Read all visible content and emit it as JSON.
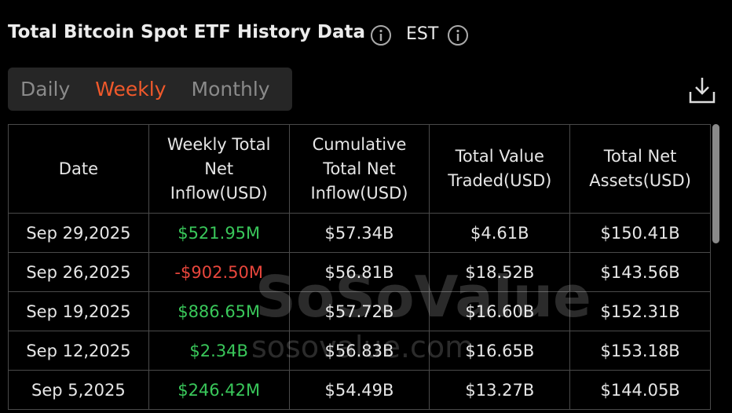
{
  "header": {
    "title": "Total Bitcoin Spot ETF History Data",
    "timezone": "EST"
  },
  "tabs": {
    "items": [
      "Daily",
      "Weekly",
      "Monthly"
    ],
    "active": 1
  },
  "table": {
    "columns": [
      "Date",
      "Weekly Total Net Inflow(USD)",
      "Cumulative Total Net Inflow(USD)",
      "Total Value Traded(USD)",
      "Total Net Assets(USD)"
    ],
    "rows": [
      [
        "Sep 29,2025",
        "$521.95M",
        "$57.34B",
        "$4.61B",
        "$150.41B"
      ],
      [
        "Sep 26,2025",
        "-$902.50M",
        "$56.81B",
        "$18.52B",
        "$143.56B"
      ],
      [
        "Sep 19,2025",
        "$886.65M",
        "$57.72B",
        "$16.60B",
        "$152.31B"
      ],
      [
        "Sep 12,2025",
        "$2.34B",
        "$56.83B",
        "$16.65B",
        "$153.18B"
      ],
      [
        "Sep 5,2025",
        "$246.42M",
        "$54.49B",
        "$13.27B",
        "$144.05B"
      ]
    ]
  },
  "watermark": {
    "brand": "SoSoValue",
    "url": "sosovalue.com"
  }
}
